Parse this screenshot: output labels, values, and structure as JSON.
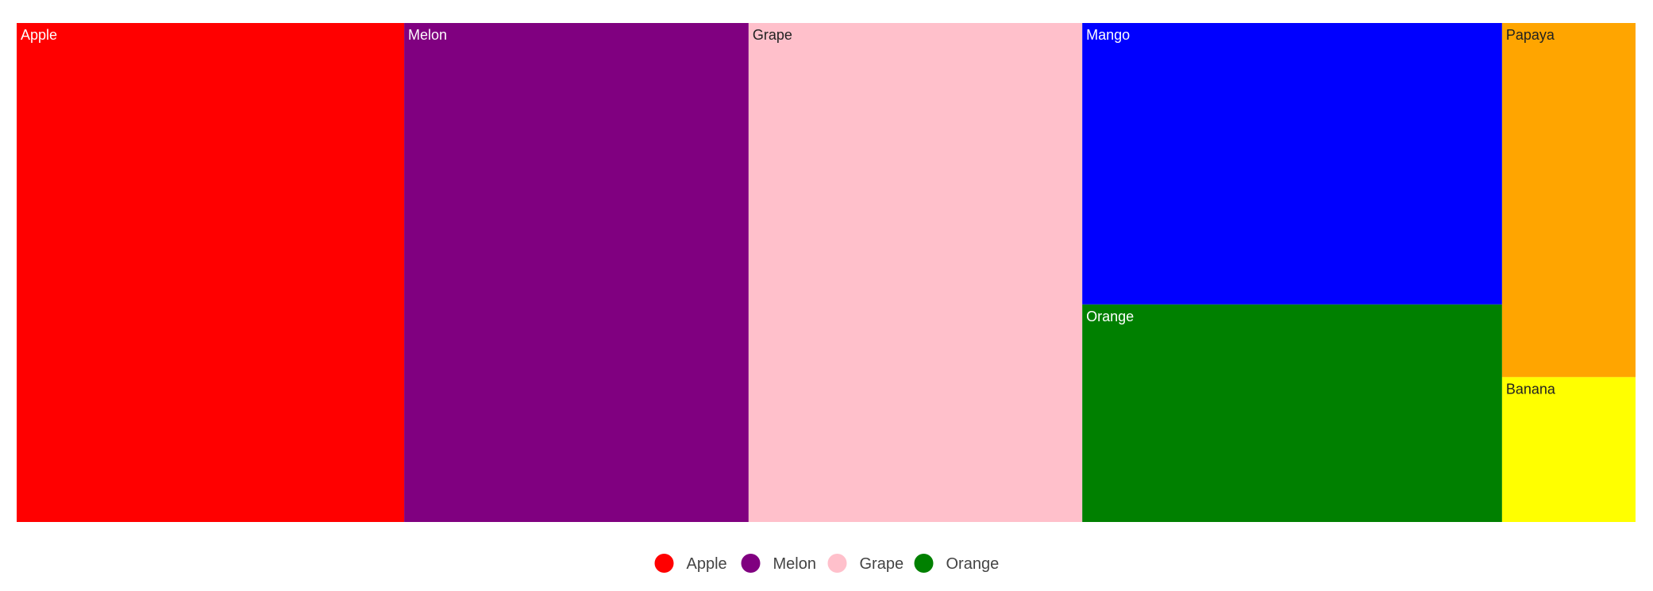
{
  "chart_data": {
    "type": "treemap",
    "nodes": [
      {
        "label": "Apple",
        "value": 36,
        "color": "#ff0000",
        "text_color": "#ffffff"
      },
      {
        "label": "Melon",
        "value": 32,
        "color": "#800080",
        "text_color": "#ffffff"
      },
      {
        "label": "Grape",
        "value": 31,
        "color": "#ffc0cb",
        "text_color": "#222222"
      },
      {
        "label": "Mango",
        "value": 22,
        "color": "#0000ff",
        "text_color": "#ffffff"
      },
      {
        "label": "Orange",
        "value": 17,
        "color": "#008000",
        "text_color": "#ffffff"
      },
      {
        "label": "Papaya",
        "value": 8.8,
        "color": "#ffa500",
        "text_color": "#222222"
      },
      {
        "label": "Banana",
        "value": 3.6,
        "color": "#ffff00",
        "text_color": "#222222"
      }
    ],
    "legend": {
      "position": "bottom",
      "items": [
        {
          "label": "Apple",
          "color": "#ff0000"
        },
        {
          "label": "Melon",
          "color": "#800080"
        },
        {
          "label": "Grape",
          "color": "#ffc0cb"
        },
        {
          "label": "Orange",
          "color": "#008000"
        }
      ]
    }
  }
}
